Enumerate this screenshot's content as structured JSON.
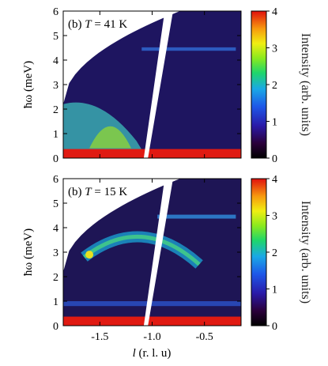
{
  "chart_data": [
    {
      "type": "heatmap",
      "panel_label": "(b)",
      "annotation": {
        "var": "T",
        "eq": "=",
        "value": "41 K"
      },
      "ylabel": "ħω (meV)",
      "ylim": [
        0,
        6
      ],
      "yticks": [
        "0",
        "1",
        "2",
        "3",
        "4",
        "5",
        "6"
      ],
      "xlim": [
        -1.85,
        -0.15
      ],
      "colorbar": {
        "label": "Intensity (arb. units)",
        "range": [
          0,
          4
        ],
        "ticks": [
          "0",
          "1",
          "2",
          "3",
          "4"
        ]
      },
      "features": {
        "elastic_line_meV": 0.25,
        "excitation_band_meV": [
          0.5,
          2.0
        ],
        "excitation_peak_l": -1.4,
        "flat_band_meV": 4.45,
        "gap_l_range": [
          -1.08,
          -0.92
        ]
      }
    },
    {
      "type": "heatmap",
      "panel_label": "(b)",
      "annotation": {
        "var": "T",
        "eq": "=",
        "value": "15 K"
      },
      "ylabel": "ħω (meV)",
      "xlabel": {
        "var": "l",
        "rest": " (r. l. u)"
      },
      "ylim": [
        0,
        6
      ],
      "yticks": [
        "0",
        "1",
        "2",
        "3",
        "4",
        "5",
        "6"
      ],
      "xlim": [
        -1.85,
        -0.15
      ],
      "xticks": [
        "-1.5",
        "-1.0",
        "-0.5"
      ],
      "xtick_values": [
        -1.5,
        -1.0,
        -0.5
      ],
      "colorbar": {
        "label": "Intensity (arb. units)",
        "range": [
          0,
          4
        ],
        "ticks": [
          "0",
          "1",
          "2",
          "3",
          "4"
        ]
      },
      "features": {
        "elastic_line_meV": 0.25,
        "flat_band_meV": 0.9,
        "dispersive_band_center_l": -1.1,
        "dispersive_band_peak_meV": 3.7,
        "dispersive_band_edge_meV": 2.8,
        "upper_band_meV": 4.45,
        "gap_l_range": [
          -1.08,
          -0.92
        ]
      }
    }
  ]
}
